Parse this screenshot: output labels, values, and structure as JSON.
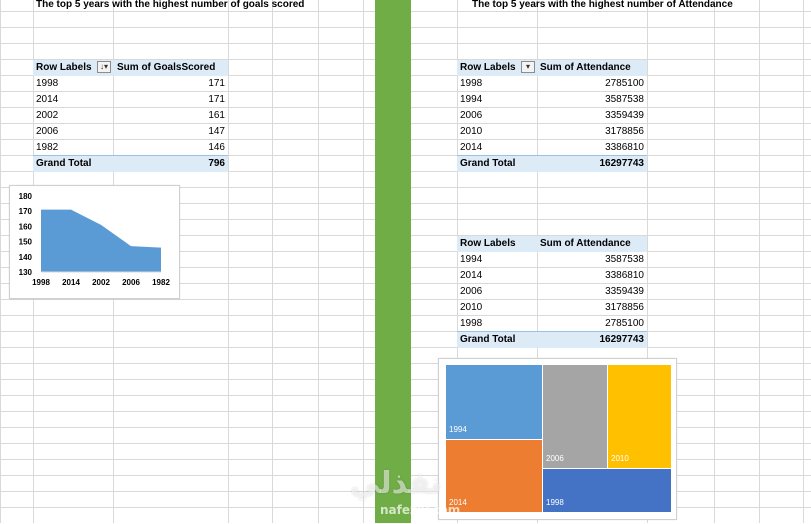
{
  "left": {
    "title": "The top 5 years with the highest number of goals scored",
    "pivot": {
      "col1": "Row Labels",
      "col2": "Sum of GoalsScored",
      "rows": [
        {
          "label": "1998",
          "value": "171"
        },
        {
          "label": "2014",
          "value": "171"
        },
        {
          "label": "2002",
          "value": "161"
        },
        {
          "label": "2006",
          "value": "147"
        },
        {
          "label": "1982",
          "value": "146"
        }
      ],
      "total_label": "Grand Total",
      "total_value": "796"
    }
  },
  "right": {
    "title": "The top 5 years with the highest number of Attendance",
    "pivot1": {
      "col1": "Row Labels",
      "col2": "Sum of Attendance",
      "rows": [
        {
          "label": "1998",
          "value": "2785100"
        },
        {
          "label": "1994",
          "value": "3587538"
        },
        {
          "label": "2006",
          "value": "3359439"
        },
        {
          "label": "2010",
          "value": "3178856"
        },
        {
          "label": "2014",
          "value": "3386810"
        }
      ],
      "total_label": "Grand Total",
      "total_value": "16297743"
    },
    "pivot2": {
      "col1": "Row Labels",
      "col2": "Sum of Attendance",
      "rows": [
        {
          "label": "1994",
          "value": "3587538"
        },
        {
          "label": "2014",
          "value": "3386810"
        },
        {
          "label": "2006",
          "value": "3359439"
        },
        {
          "label": "2010",
          "value": "3178856"
        },
        {
          "label": "1998",
          "value": "2785100"
        }
      ],
      "total_label": "Grand Total",
      "total_value": "16297743"
    }
  },
  "watermark": {
    "main": "نفذلي",
    "sub": "nafezly.com"
  },
  "chart_data": [
    {
      "type": "area",
      "categories": [
        "1998",
        "2014",
        "2002",
        "2006",
        "1982"
      ],
      "values": [
        171,
        171,
        161,
        147,
        146
      ],
      "ylim": [
        130,
        180
      ],
      "yticks": [
        130,
        140,
        150,
        160,
        170,
        180
      ],
      "title": "",
      "xlabel": "",
      "ylabel": "",
      "grid": false,
      "color": "#5b9bd5"
    },
    {
      "type": "treemap",
      "categories": [
        "1994",
        "2014",
        "2006",
        "2010",
        "1998"
      ],
      "values": [
        3587538,
        3386810,
        3359439,
        3178856,
        2785100
      ],
      "colors": [
        "#5b9bd5",
        "#ed7d31",
        "#a5a5a5",
        "#ffc000",
        "#4472c4"
      ],
      "title": ""
    }
  ]
}
